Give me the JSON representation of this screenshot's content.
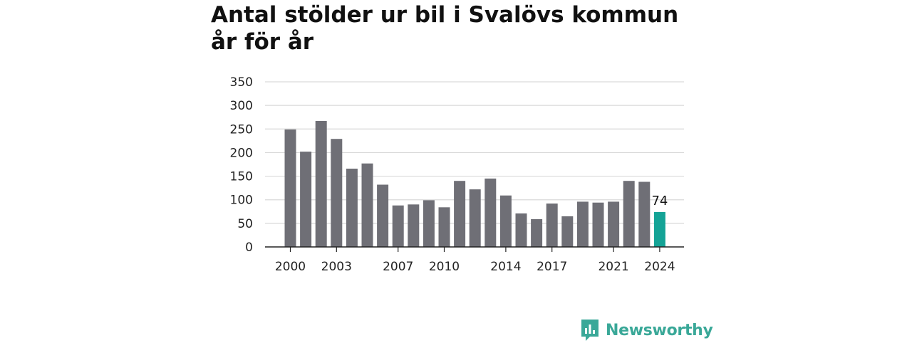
{
  "chart_data": {
    "type": "bar",
    "title": "Antal stölder ur bil i Svalövs kommun år för år",
    "xlabel": "",
    "ylabel": "",
    "ylim": [
      0,
      350
    ],
    "yticks": [
      0,
      50,
      100,
      150,
      200,
      250,
      300,
      350
    ],
    "xticks": [
      "2000",
      "2003",
      "2007",
      "2010",
      "2014",
      "2017",
      "2021",
      "2024"
    ],
    "grid": true,
    "categories": [
      "2000",
      "2001",
      "2002",
      "2003",
      "2004",
      "2005",
      "2006",
      "2007",
      "2008",
      "2009",
      "2010",
      "2011",
      "2012",
      "2013",
      "2014",
      "2015",
      "2016",
      "2017",
      "2018",
      "2019",
      "2020",
      "2021",
      "2022",
      "2023",
      "2024"
    ],
    "values": [
      249,
      202,
      267,
      229,
      166,
      177,
      132,
      88,
      90,
      99,
      84,
      140,
      122,
      145,
      109,
      71,
      59,
      92,
      65,
      96,
      94,
      96,
      140,
      138,
      74
    ],
    "highlight_index": 24,
    "highlight_label": "74",
    "colors": {
      "bar": "#6f6f76",
      "highlight": "#14a396",
      "grid": "#d9d9d9",
      "axis": "#222222"
    }
  },
  "logo": {
    "text": "Newsworthy",
    "color": "#3aa898",
    "icon": "newsworthy-chart-icon"
  }
}
